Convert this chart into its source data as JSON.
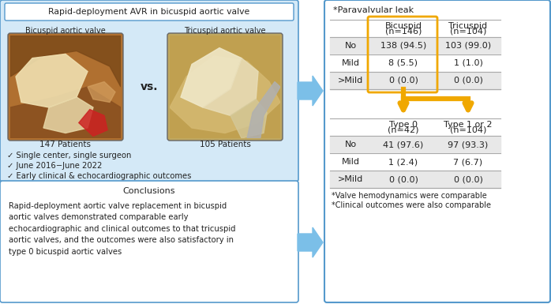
{
  "title_box": "Rapid-deployment AVR in bicuspid aortic valve",
  "left_label1": "Bicuspid aortic valve",
  "left_label2": "Tricuspid aortic valve",
  "patients1": "147 Patients",
  "patients2": "105 Patients",
  "vs_text": "vs.",
  "checklist": [
    "✓ Single center, single surgeon",
    "✓ June 2016−June 2022",
    "✓ Early clinical & echocardiographic outcomes"
  ],
  "conclusions_title": "Conclusions",
  "conclusions_body": "Rapid-deployment aortic valve replacement in bicuspid\naortic valves demonstrated comparable early\nechocardiographic and clinical outcomes to that tricuspid\naortic valves, and the outcomes were also satisfactory in\ntype 0 bicuspid aortic valves",
  "pvl_title": "*Paravalvular leak",
  "table1_col0": [
    "No",
    "Mild",
    ">Mild"
  ],
  "table1_col1_hdr": [
    "Bicuspid",
    "(n=146)"
  ],
  "table1_col2_hdr": [
    "Tricuspid",
    "(n=104)"
  ],
  "table1_col1": [
    "138 (94.5)",
    "8 (5.5)",
    "0 (0.0)"
  ],
  "table1_col2": [
    "103 (99.0)",
    "1 (1.0)",
    "0 (0.0)"
  ],
  "table2_col0": [
    "No",
    "Mild",
    ">Mild"
  ],
  "table2_col1_hdr": [
    "Type 0",
    "(n=42)"
  ],
  "table2_col2_hdr": [
    "Type 1 or 2",
    "(n=104)"
  ],
  "table2_col1": [
    "41 (97.6)",
    "1 (2.4)",
    "0 (0.0)"
  ],
  "table2_col2": [
    "97 (93.3)",
    "7 (6.7)",
    "0 (0.0)"
  ],
  "footnotes": [
    "*Valve hemodynamics were comparable",
    "*Clinical outcomes were also comparable"
  ],
  "light_blue_bg": "#d4e9f7",
  "border_blue": "#5599cc",
  "arrow_blue": "#7bbfe8",
  "arrow_yellow": "#f0a800",
  "yellow_box": "#f0a800",
  "table_gray": "#e8e8e8",
  "text_black": "#222222",
  "img_left_bg": "#b07030",
  "img_right_bg": "#c0a860"
}
